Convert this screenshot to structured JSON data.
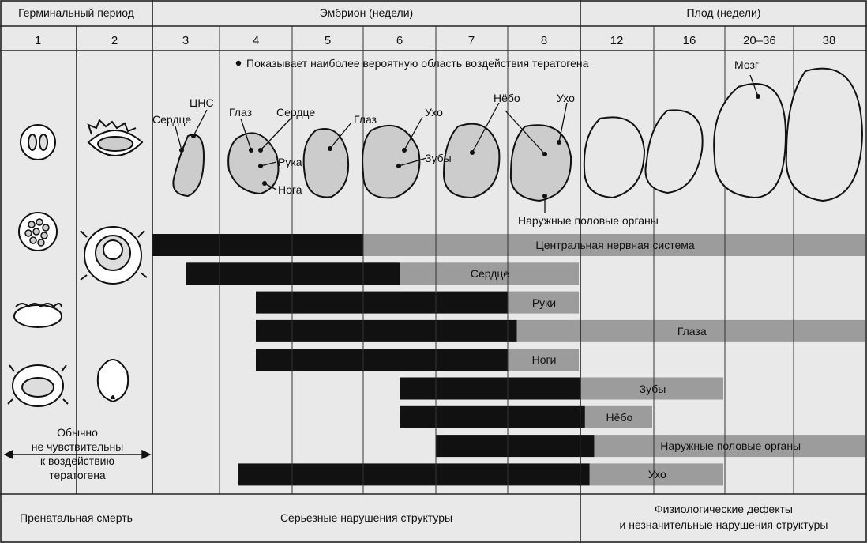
{
  "header": {
    "germinal": "Герминальный период",
    "embryo": "Эмбрион (недели)",
    "fetus": "Плод (недели)"
  },
  "weeks": [
    "1",
    "2",
    "3",
    "4",
    "5",
    "6",
    "7",
    "8",
    "12",
    "16",
    "20–36",
    "38"
  ],
  "legend_note": "Показывает наиболее вероятную область воздействия тератогена",
  "labels": {
    "cns": "ЦНС",
    "heart_1": "Сердце",
    "eye_1": "Глаз",
    "heart_2": "Сердце",
    "arm": "Рука",
    "leg": "Нога",
    "eye_2": "Глаз",
    "ear_1": "Ухо",
    "teeth": "Зубы",
    "palate": "Нёбо",
    "ear_2": "Ухо",
    "genitals": "Наружные половые органы",
    "brain": "Мозг"
  },
  "insensitive_note": "Обычно\nне чувствительны\nк воздействию\nтератогена",
  "bars": [
    {
      "label": "Центральная нервная система",
      "black_from": 3,
      "black_to": 6,
      "grey_to": 38
    },
    {
      "label": "Сердце",
      "black_from": 3.5,
      "black_to": 6.5,
      "grey_to": 12
    },
    {
      "label": "Руки",
      "black_from": 4.5,
      "black_to": 8,
      "grey_to": 12
    },
    {
      "label": "Глаза",
      "black_from": 4.5,
      "black_to": 8.5,
      "grey_to": 38
    },
    {
      "label": "Ноги",
      "black_from": 4.5,
      "black_to": 8,
      "grey_to": 12
    },
    {
      "label": "Зубы",
      "black_from": 6.5,
      "black_to": 12,
      "grey_to": 20
    },
    {
      "label": "Нёбо",
      "black_from": 6.5,
      "black_to": 12.25,
      "grey_to": 16
    },
    {
      "label": "Наружные половые органы",
      "black_from": 7,
      "black_to": 12.75,
      "grey_to": 38
    },
    {
      "label": "Ухо",
      "black_from": 4.25,
      "black_to": 12.5,
      "grey_to": 20
    }
  ],
  "footer": {
    "left": "Пренатальная смерть",
    "middle": "Серьезные нарушения структуры",
    "right": "Физиологические дефекты\nи незначительные нарушения структуры"
  }
}
